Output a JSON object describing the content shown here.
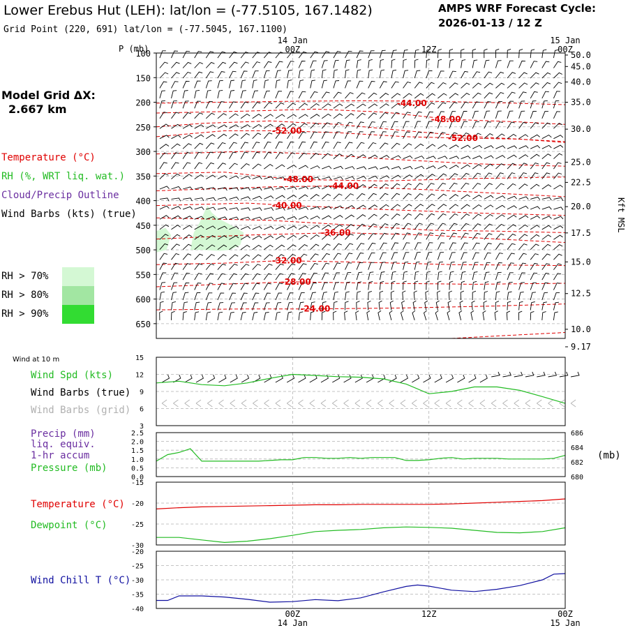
{
  "header": {
    "title": "Lower Erebus Hut (LEH):  lat/lon = (-77.5105, 167.1482)",
    "grid_point": "Grid Point (220, 691) lat/lon = (-77.5045, 167.1100)",
    "cycle_line1": "AMPS WRF Forecast Cycle:",
    "cycle_line2": "2026-01-13 / 12  Z"
  },
  "model_grid": {
    "line1": "Model Grid ΔX:",
    "line2": "2.667 km"
  },
  "colors": {
    "temperature": "#e00000",
    "rh": "#22bb22",
    "cloud": "#6a2ea0",
    "wind": "#000000",
    "wind_grid": "#b0b0b0",
    "wind_chill": "#1010a0",
    "rh70": "#d4f8d4",
    "rh80": "#a2e6a2",
    "rh90": "#32dc32",
    "gridline": "#b0b0b0"
  },
  "time_axis": {
    "top_labels": [
      {
        "date": "14 Jan",
        "hour": "00Z",
        "h": 12
      },
      {
        "date": "",
        "hour": "12Z",
        "h": 24
      },
      {
        "date": "15 Jan",
        "hour": "00Z",
        "h": 36
      }
    ],
    "bottom_labels": [
      {
        "hour": "00Z",
        "date": "14 Jan",
        "h": 12
      },
      {
        "hour": "12Z",
        "date": "",
        "h": 24
      },
      {
        "hour": "00Z",
        "date": "15 Jan",
        "h": 36
      }
    ],
    "range_hours": [
      0,
      36
    ]
  },
  "legend": {
    "temperature": "Temperature (°C)",
    "rh": "RH (%, WRT liq. wat.)",
    "cloud": "Cloud/Precip Outline",
    "wind": "Wind Barbs (kts) (true)",
    "rh_levels": [
      "RH > 70%",
      "RH > 80%",
      "RH > 90%"
    ]
  },
  "chart_data": [
    {
      "type": "contour",
      "name": "upper-air",
      "ylabel": "P (mb)",
      "y2label": "Kft MSL",
      "ylim": [
        100,
        680
      ],
      "pressure_ticks": [
        100,
        150,
        200,
        250,
        300,
        350,
        400,
        450,
        500,
        550,
        600,
        650
      ],
      "height_ticks": [
        {
          "label": "50.0",
          "p": 103
        },
        {
          "label": "45.0",
          "p": 120
        },
        {
          "label": "40.0",
          "p": 143
        },
        {
          "label": "35.0",
          "p": 173
        },
        {
          "label": "30.0",
          "p": 213
        },
        {
          "label": "25.0",
          "p": 262
        },
        {
          "label": "22.5",
          "p": 292
        },
        {
          "label": "20.0",
          "p": 328
        },
        {
          "label": "17.5",
          "p": 367
        },
        {
          "label": "15.0",
          "p": 410
        },
        {
          "label": "12.5",
          "p": 457
        },
        {
          "label": "10.0",
          "p": 510
        },
        {
          "label": "9.17",
          "p": 536
        }
      ],
      "temperature_labels": [
        {
          "text": "-44.00",
          "h": 22.5,
          "p": 202
        },
        {
          "text": "-48.00",
          "h": 25.5,
          "p": 235
        },
        {
          "text": "-52.00",
          "h": 11.5,
          "p": 258
        },
        {
          "text": "-52.00",
          "h": 27.0,
          "p": 273
        },
        {
          "text": "-48.00",
          "h": 12.5,
          "p": 357
        },
        {
          "text": "-44.00",
          "h": 16.5,
          "p": 370
        },
        {
          "text": "-40.00",
          "h": 11.5,
          "p": 410
        },
        {
          "text": "-36.00",
          "h": 15.8,
          "p": 465
        },
        {
          "text": "-32.00",
          "h": 11.5,
          "p": 522
        },
        {
          "text": "-28.00",
          "h": 12.3,
          "p": 565
        },
        {
          "text": "-24.00",
          "h": 14.0,
          "p": 620
        }
      ],
      "rh_areas": [
        "RH > 70%",
        "RH > 80%"
      ]
    },
    {
      "type": "line",
      "name": "wind-10m",
      "title": "Wind at 10 m",
      "labels": [
        "Wind Spd (kts)",
        "Wind Barbs (true)",
        "Wind Barbs (grid)"
      ],
      "ylim": [
        3,
        15
      ],
      "yticks": [
        3,
        6,
        9,
        12,
        15
      ],
      "series": [
        {
          "name": "Wind Spd (kts)",
          "x": [
            0,
            2,
            4,
            6,
            8,
            10,
            12,
            14,
            16,
            18,
            20,
            22,
            24,
            26,
            28,
            30,
            32,
            34,
            36
          ],
          "values": [
            10.5,
            10.8,
            10.2,
            10.0,
            10.5,
            11.3,
            12.0,
            11.8,
            11.6,
            11.5,
            11.2,
            10.3,
            8.6,
            9.0,
            9.8,
            9.8,
            9.2,
            8.1,
            6.9
          ]
        }
      ]
    },
    {
      "type": "line",
      "name": "precip-pressure",
      "labels": [
        "Precip (mm)",
        "liq. equiv.",
        "1-hr accum",
        "Pressure (mb)"
      ],
      "ylim": [
        0,
        2.5
      ],
      "yticks": [
        "0.0",
        "0.5",
        "1.0",
        "1.5",
        "2.0",
        "2.5"
      ],
      "y2lim": [
        680,
        686
      ],
      "y2ticks": [
        "680",
        "682",
        "684",
        "686"
      ],
      "y2label": "(mb)",
      "series": [
        {
          "name": "Pressure (mb)",
          "x": [
            0,
            1,
            2,
            3,
            4,
            5,
            6,
            7,
            8,
            9,
            10,
            11,
            12,
            13,
            14,
            15,
            16,
            17,
            18,
            19,
            20,
            21,
            22,
            23,
            24,
            25,
            26,
            27,
            28,
            29,
            30,
            31,
            32,
            33,
            34,
            35,
            36
          ],
          "values": [
            682.1,
            683.0,
            683.3,
            683.8,
            682.1,
            682.1,
            682.1,
            682.1,
            682.1,
            682.1,
            682.2,
            682.3,
            682.3,
            682.6,
            682.6,
            682.5,
            682.5,
            682.6,
            682.5,
            682.6,
            682.6,
            682.6,
            682.2,
            682.2,
            682.3,
            682.5,
            682.6,
            682.4,
            682.5,
            682.5,
            682.5,
            682.4,
            682.4,
            682.4,
            682.4,
            682.5,
            682.9
          ]
        }
      ]
    },
    {
      "type": "line",
      "name": "temperature-dewpoint",
      "labels": [
        "Temperature (°C)",
        "Dewpoint (°C)"
      ],
      "ylim": [
        -30,
        -15
      ],
      "yticks": [
        "-15",
        "-20",
        "-25",
        "-30"
      ],
      "series": [
        {
          "name": "Temperature (°C)",
          "x": [
            0,
            2,
            4,
            6,
            8,
            10,
            12,
            14,
            16,
            18,
            20,
            22,
            24,
            26,
            28,
            30,
            32,
            34,
            36
          ],
          "values": [
            -21.4,
            -21.1,
            -20.9,
            -20.8,
            -20.7,
            -20.6,
            -20.5,
            -20.4,
            -20.4,
            -20.3,
            -20.3,
            -20.3,
            -20.3,
            -20.2,
            -20.0,
            -19.8,
            -19.6,
            -19.4,
            -19.0
          ]
        },
        {
          "name": "Dewpoint (°C)",
          "x": [
            0,
            2,
            4,
            6,
            8,
            10,
            12,
            14,
            16,
            18,
            20,
            22,
            24,
            26,
            28,
            30,
            32,
            34,
            36
          ],
          "values": [
            -28.2,
            -28.2,
            -28.8,
            -29.4,
            -29.1,
            -28.5,
            -27.7,
            -26.8,
            -26.5,
            -26.3,
            -25.9,
            -25.7,
            -25.8,
            -26.0,
            -26.5,
            -27.0,
            -27.1,
            -26.8,
            -25.9
          ]
        }
      ]
    },
    {
      "type": "line",
      "name": "wind-chill",
      "labels": [
        "Wind Chill T (°C)"
      ],
      "ylim": [
        -40,
        -20
      ],
      "yticks": [
        "-20",
        "-25",
        "-30",
        "-35",
        "-40"
      ],
      "series": [
        {
          "name": "Wind Chill T (°C)",
          "x": [
            0,
            1,
            2,
            4,
            6,
            8,
            10,
            12,
            14,
            16,
            18,
            20,
            22,
            23,
            24,
            26,
            28,
            30,
            32,
            34,
            35,
            36
          ],
          "values": [
            -37.2,
            -37.2,
            -35.6,
            -35.6,
            -36.0,
            -36.8,
            -37.8,
            -37.6,
            -36.9,
            -37.3,
            -36.3,
            -34.2,
            -32.3,
            -31.8,
            -32.2,
            -33.6,
            -34.1,
            -33.3,
            -32.0,
            -30.0,
            -28.0,
            -27.8
          ]
        }
      ]
    }
  ]
}
